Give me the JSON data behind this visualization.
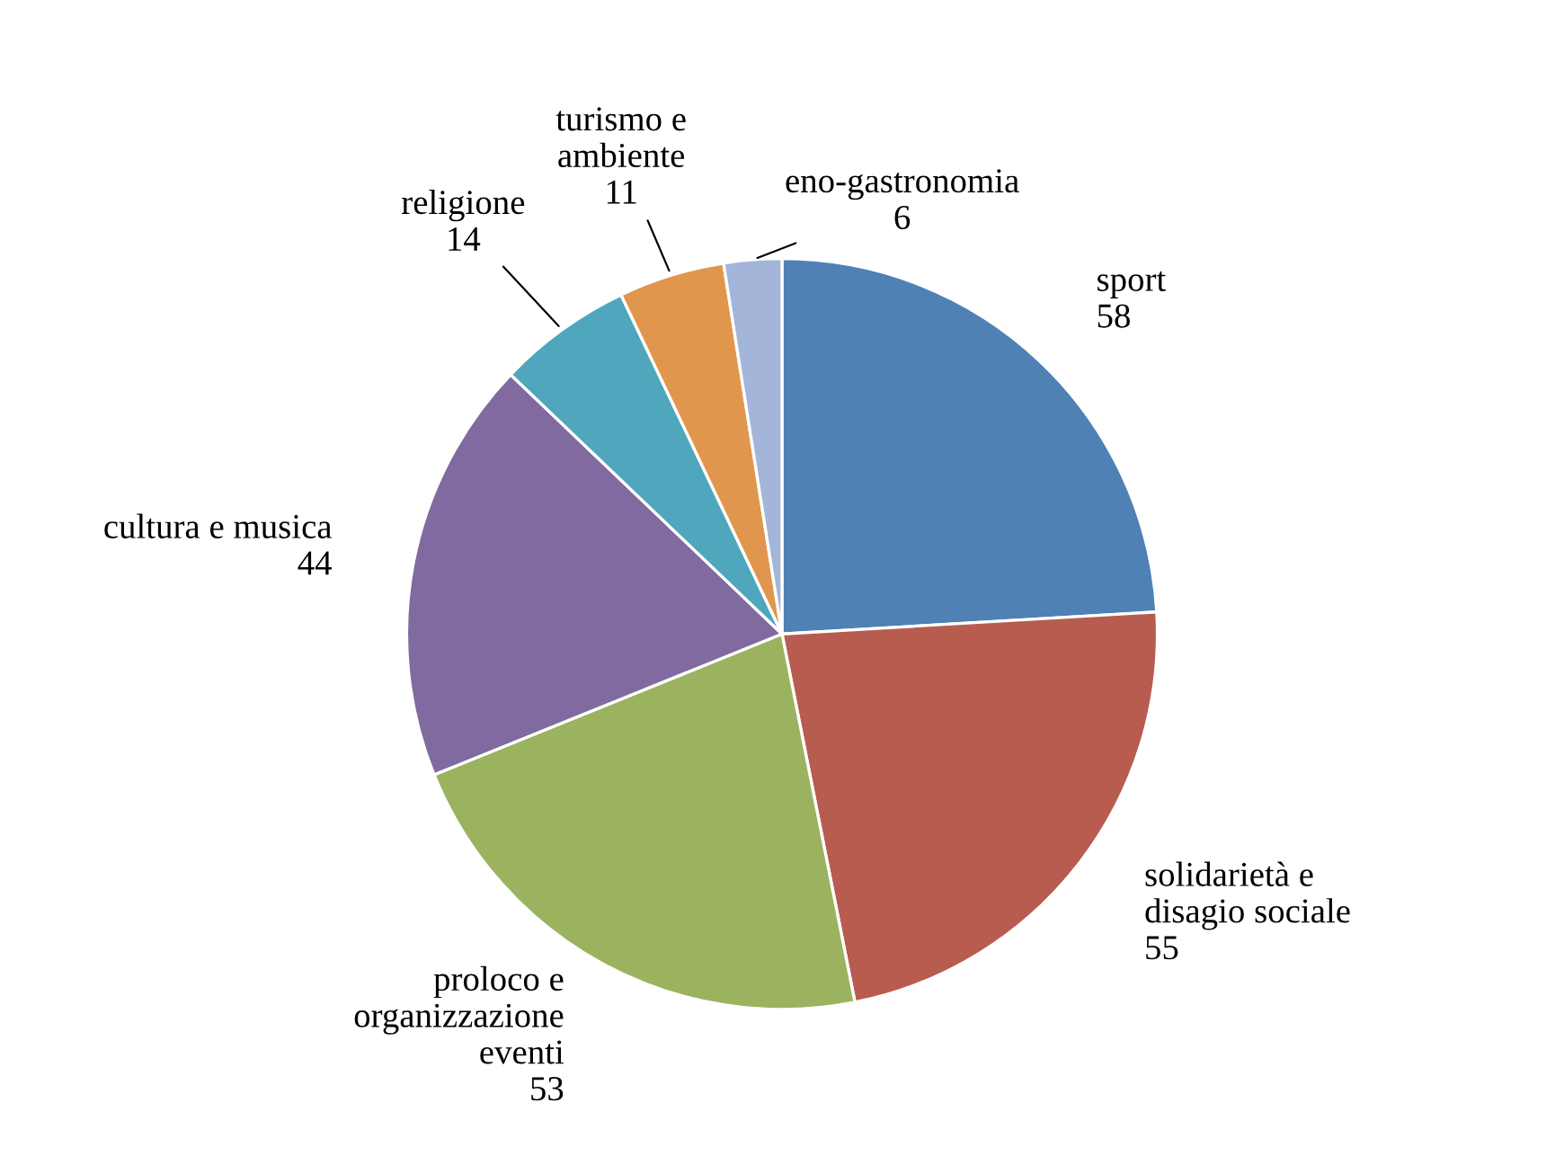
{
  "chart_data": {
    "type": "pie",
    "categories": [
      "sport",
      "solidarietà e disagio sociale",
      "proloco e organizzazione eventi",
      "cultura e musica",
      "religione",
      "turismo e ambiente",
      "eno-gastronomia"
    ],
    "values": [
      58,
      55,
      53,
      44,
      14,
      11,
      6
    ],
    "colors": [
      "#4f81b4",
      "#b85c50",
      "#9bb35f",
      "#806aa0",
      "#4fa6bd",
      "#e0964c",
      "#a3b5d8"
    ],
    "data_labels": true,
    "legend": false
  }
}
